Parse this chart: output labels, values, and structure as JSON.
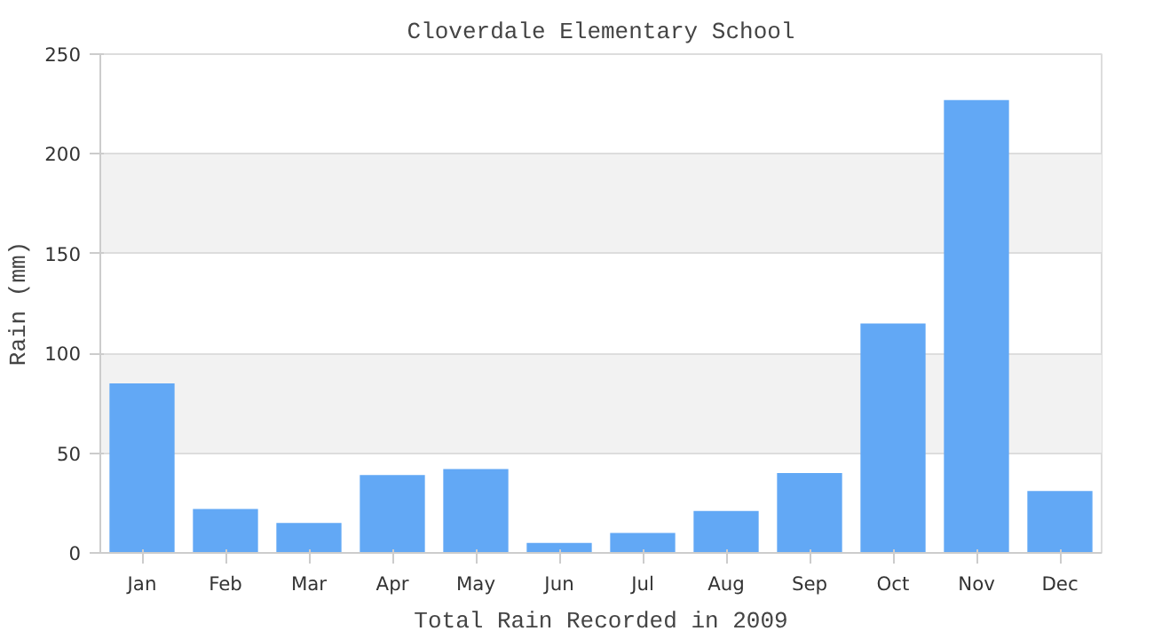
{
  "chart_data": {
    "type": "bar",
    "title": "Cloverdale Elementary School",
    "xlabel": "Total Rain Recorded in 2009",
    "ylabel": "Rain (mm)",
    "categories": [
      "Jan",
      "Feb",
      "Mar",
      "Apr",
      "May",
      "Jun",
      "Jul",
      "Aug",
      "Sep",
      "Oct",
      "Nov",
      "Dec"
    ],
    "values": [
      85,
      22,
      15,
      39,
      42,
      5,
      10,
      21,
      40,
      115,
      227,
      31
    ],
    "color": "#62a8f5",
    "ylim": [
      0,
      250
    ],
    "yticks": [
      0,
      50,
      100,
      150,
      200,
      250
    ],
    "grid": "y"
  }
}
